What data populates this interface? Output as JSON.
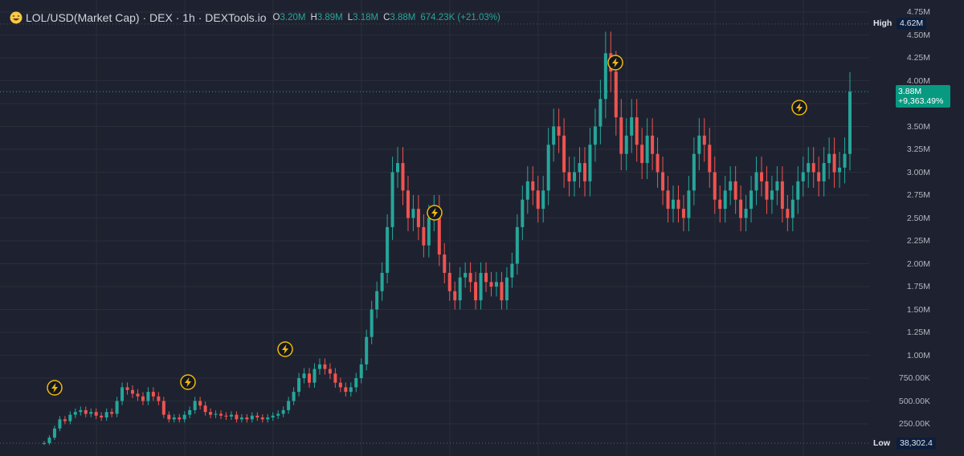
{
  "legend": {
    "title": "LOL/USD(Market Cap) · DEX · 1h · DEXTools.io",
    "open_label": "O",
    "open_value": "3.20M",
    "high_label": "H",
    "high_value": "3.89M",
    "low_label": "L",
    "low_value": "3.18M",
    "close_label": "C",
    "close_value": "3.88M",
    "change": "674.23K (+21.03%)",
    "emoji_icon": "laughing-face-icon"
  },
  "price_axis": {
    "ticks": [
      "4.75M",
      "4.50M",
      "4.25M",
      "4.00M",
      "3.75M",
      "3.50M",
      "3.25M",
      "3.00M",
      "2.75M",
      "2.50M",
      "2.25M",
      "2.00M",
      "1.75M",
      "1.50M",
      "1.25M",
      "1.00M",
      "750.00K",
      "500.00K",
      "250.00K"
    ]
  },
  "markers": {
    "high_label": "High",
    "high_value": "4.62M",
    "low_label": "Low",
    "low_value": "38,302.4",
    "last_price": "3.88M",
    "last_change": "+9,363.49%"
  },
  "colors": {
    "background": "#1e2230",
    "up": "#26a69a",
    "down": "#ef5350",
    "grid": "#2a2e39",
    "price_tag": "#089981",
    "event_badge": "#f0b90b"
  },
  "event_icon": "lightning-bolt-icon",
  "chart_data": {
    "type": "candlestick",
    "title": "LOL/USD(Market Cap)",
    "ylim": [
      0,
      4750000
    ],
    "grid": true,
    "approx_closes_millions": [
      0.04,
      0.1,
      0.2,
      0.3,
      0.28,
      0.35,
      0.38,
      0.4,
      0.36,
      0.38,
      0.34,
      0.32,
      0.38,
      0.36,
      0.5,
      0.65,
      0.62,
      0.58,
      0.55,
      0.5,
      0.6,
      0.55,
      0.5,
      0.35,
      0.3,
      0.32,
      0.3,
      0.35,
      0.4,
      0.5,
      0.45,
      0.38,
      0.35,
      0.36,
      0.34,
      0.33,
      0.35,
      0.3,
      0.32,
      0.3,
      0.34,
      0.32,
      0.3,
      0.32,
      0.34,
      0.36,
      0.4,
      0.5,
      0.6,
      0.75,
      0.8,
      0.7,
      0.85,
      0.9,
      0.85,
      0.8,
      0.7,
      0.65,
      0.6,
      0.65,
      0.75,
      0.9,
      1.2,
      1.5,
      1.7,
      1.9,
      2.4,
      3.0,
      3.1,
      2.8,
      2.5,
      2.6,
      2.4,
      2.2,
      2.5,
      2.6,
      2.1,
      1.9,
      1.7,
      1.6,
      1.85,
      1.9,
      1.8,
      1.6,
      1.9,
      1.8,
      1.75,
      1.8,
      1.6,
      1.85,
      2.0,
      2.4,
      2.7,
      2.9,
      2.8,
      2.6,
      2.8,
      3.3,
      3.5,
      3.4,
      3.0,
      2.9,
      3.0,
      3.1,
      2.9,
      3.3,
      3.5,
      3.8,
      4.3,
      4.1,
      3.6,
      3.2,
      3.4,
      3.6,
      3.3,
      3.1,
      3.4,
      3.2,
      3.0,
      2.8,
      2.6,
      2.7,
      2.6,
      2.5,
      2.8,
      3.2,
      3.4,
      3.3,
      3.0,
      2.7,
      2.6,
      2.8,
      2.9,
      2.7,
      2.5,
      2.6,
      2.8,
      3.0,
      2.9,
      2.7,
      2.8,
      2.9,
      2.6,
      2.5,
      2.7,
      2.9,
      3.0,
      3.1,
      3.0,
      2.9,
      3.1,
      3.2,
      3.0,
      3.05,
      3.2,
      3.88
    ]
  }
}
